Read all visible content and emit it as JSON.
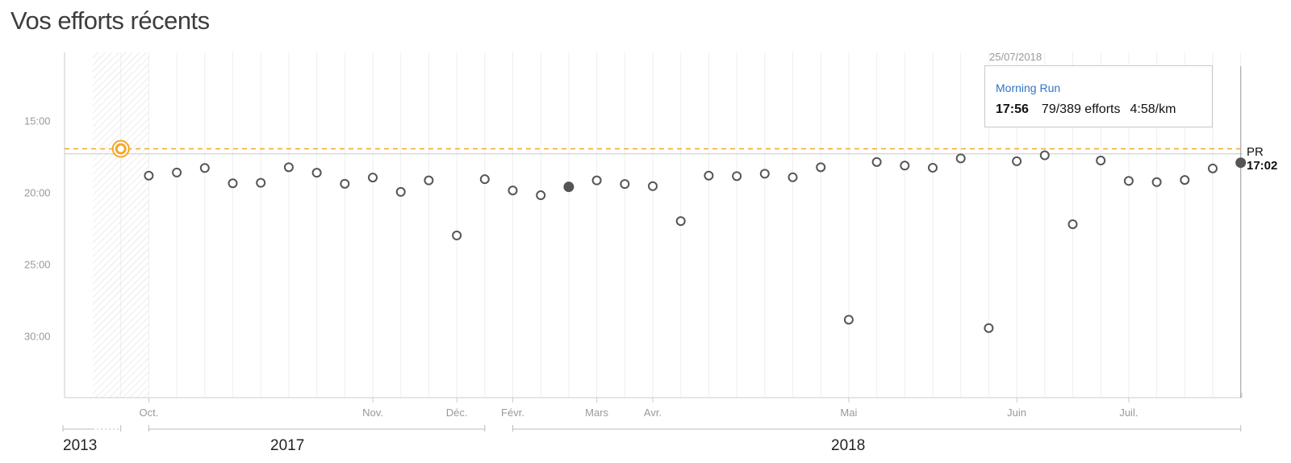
{
  "page": {
    "title": "Vos efforts récents"
  },
  "tooltip": {
    "date": "25/07/2018",
    "activity_name": "Morning Run",
    "time": "17:56",
    "efforts": "79/389 efforts",
    "pace": "4:58/km"
  },
  "pr": {
    "label": "PR",
    "time": "17:02"
  },
  "colors": {
    "pr_line": "#f5a623",
    "marker": "#555555",
    "marker_selected": "#555555",
    "grid": "#eeeeee",
    "axis": "#cccccc",
    "tooltip_link": "#2f76c2"
  },
  "chart_data": {
    "type": "scatter",
    "title": "Vos efforts récents",
    "y_unit": "minutes (mm:ss)",
    "y_reversed": true,
    "ylim": [
      "12:00",
      "35:00"
    ],
    "y_ticks": [
      "15:00",
      "20:00",
      "25:00",
      "30:00"
    ],
    "x_month_labels": [
      {
        "label": "Oct.",
        "slot": 2
      },
      {
        "label": "Nov.",
        "slot": 10
      },
      {
        "label": "Déc.",
        "slot": 13
      },
      {
        "label": "Févr.",
        "slot": 15
      },
      {
        "label": "Mars",
        "slot": 18
      },
      {
        "label": "Avr.",
        "slot": 20
      },
      {
        "label": "Mai",
        "slot": 27
      },
      {
        "label": "Juin",
        "slot": 33
      },
      {
        "label": "Juil.",
        "slot": 37
      }
    ],
    "x_years": [
      {
        "label": "2013",
        "slot_start": 0,
        "slot_end": 1
      },
      {
        "label": "2017",
        "slot_start": 2,
        "slot_end": 14
      },
      {
        "label": "2018",
        "slot_start": 15,
        "slot_end": 41
      }
    ],
    "grid": true,
    "pr_reference": {
      "time": "17:02",
      "best_effort_time": "16:58",
      "best_effort_slot": 1
    },
    "points": [
      {
        "slot": 1,
        "time": "16:58",
        "kind": "pr"
      },
      {
        "slot": 2,
        "time": "18:50"
      },
      {
        "slot": 3,
        "time": "18:37"
      },
      {
        "slot": 4,
        "time": "18:18"
      },
      {
        "slot": 5,
        "time": "19:22"
      },
      {
        "slot": 6,
        "time": "19:20"
      },
      {
        "slot": 7,
        "time": "18:15"
      },
      {
        "slot": 8,
        "time": "18:38"
      },
      {
        "slot": 9,
        "time": "19:24"
      },
      {
        "slot": 10,
        "time": "18:58"
      },
      {
        "slot": 11,
        "time": "19:58"
      },
      {
        "slot": 12,
        "time": "19:10"
      },
      {
        "slot": 13,
        "time": "23:00"
      },
      {
        "slot": 14,
        "time": "19:05"
      },
      {
        "slot": 15,
        "time": "19:52"
      },
      {
        "slot": 16,
        "time": "20:12"
      },
      {
        "slot": 17,
        "time": "19:37",
        "kind": "filled"
      },
      {
        "slot": 18,
        "time": "19:10"
      },
      {
        "slot": 19,
        "time": "19:25"
      },
      {
        "slot": 20,
        "time": "19:34"
      },
      {
        "slot": 21,
        "time": "22:00"
      },
      {
        "slot": 22,
        "time": "18:50"
      },
      {
        "slot": 23,
        "time": "18:52"
      },
      {
        "slot": 24,
        "time": "18:42"
      },
      {
        "slot": 25,
        "time": "18:57"
      },
      {
        "slot": 26,
        "time": "18:15"
      },
      {
        "slot": 27,
        "time": "28:52"
      },
      {
        "slot": 28,
        "time": "17:53"
      },
      {
        "slot": 29,
        "time": "18:08"
      },
      {
        "slot": 30,
        "time": "18:17"
      },
      {
        "slot": 31,
        "time": "17:38"
      },
      {
        "slot": 32,
        "time": "29:27"
      },
      {
        "slot": 33,
        "time": "17:50"
      },
      {
        "slot": 34,
        "time": "17:25"
      },
      {
        "slot": 35,
        "time": "22:13"
      },
      {
        "slot": 36,
        "time": "17:47"
      },
      {
        "slot": 37,
        "time": "19:12"
      },
      {
        "slot": 38,
        "time": "19:17"
      },
      {
        "slot": 39,
        "time": "19:08"
      },
      {
        "slot": 40,
        "time": "18:20"
      },
      {
        "slot": 41,
        "time": "17:56",
        "kind": "selected"
      }
    ]
  }
}
